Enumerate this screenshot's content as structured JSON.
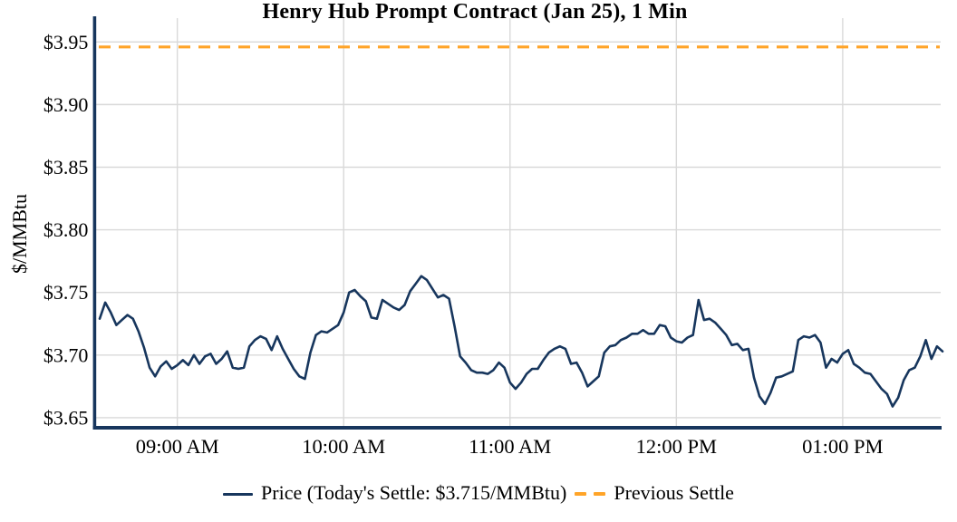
{
  "legend": {
    "price_label": "Price (Today's Settle: $3.715/MMBtu)",
    "settle_label": "Previous Settle"
  },
  "colors": {
    "price_line": "#17365d",
    "previous_settle": "#ffa428",
    "axis": "#17365d",
    "grid": "#d9d9d9",
    "text": "#000000",
    "background": "#ffffff"
  },
  "chart_data": {
    "type": "line",
    "title": "Henry Hub Prompt Contract (Jan 25), 1 Min",
    "xlabel": "",
    "ylabel": "$/MMBtu",
    "ylim": [
      3.642,
      3.969
    ],
    "grid": true,
    "legend_position": "bottom-center",
    "today_settle": 3.715,
    "previous_settle": 3.946,
    "x_start_minute": 512,
    "x_end_minute": 816,
    "step_minutes": 2,
    "time_span": {
      "start": "08:32 AM",
      "end": "01:36 PM"
    },
    "y_ticks": [
      {
        "value": 3.65,
        "label": "$3.65"
      },
      {
        "value": 3.7,
        "label": "$3.70"
      },
      {
        "value": 3.75,
        "label": "$3.75"
      },
      {
        "value": 3.8,
        "label": "$3.80"
      },
      {
        "value": 3.85,
        "label": "$3.85"
      },
      {
        "value": 3.9,
        "label": "$3.90"
      },
      {
        "value": 3.95,
        "label": "$3.95"
      }
    ],
    "x_ticks": [
      {
        "minute": 540,
        "label": "09:00 AM"
      },
      {
        "minute": 600,
        "label": "10:00 AM"
      },
      {
        "minute": 660,
        "label": "11:00 AM"
      },
      {
        "minute": 720,
        "label": "12:00 PM"
      },
      {
        "minute": 780,
        "label": "01:00 PM"
      }
    ],
    "series": [
      {
        "name": "Price",
        "values": [
          3.729,
          3.742,
          3.734,
          3.724,
          3.728,
          3.732,
          3.729,
          3.719,
          3.706,
          3.69,
          3.683,
          3.691,
          3.695,
          3.689,
          3.692,
          3.696,
          3.692,
          3.7,
          3.693,
          3.699,
          3.701,
          3.693,
          3.697,
          3.703,
          3.69,
          3.689,
          3.69,
          3.707,
          3.712,
          3.715,
          3.713,
          3.704,
          3.715,
          3.705,
          3.697,
          3.689,
          3.683,
          3.681,
          3.702,
          3.716,
          3.719,
          3.718,
          3.721,
          3.724,
          3.734,
          3.75,
          3.752,
          3.747,
          3.743,
          3.73,
          3.729,
          3.744,
          3.741,
          3.738,
          3.736,
          3.74,
          3.751,
          3.757,
          3.763,
          3.76,
          3.753,
          3.746,
          3.748,
          3.745,
          3.723,
          3.699,
          3.694,
          3.688,
          3.686,
          3.686,
          3.685,
          3.688,
          3.694,
          3.69,
          3.678,
          3.673,
          3.678,
          3.685,
          3.689,
          3.689,
          3.696,
          3.702,
          3.705,
          3.707,
          3.705,
          3.693,
          3.694,
          3.686,
          3.675,
          3.679,
          3.683,
          3.702,
          3.707,
          3.708,
          3.712,
          3.714,
          3.717,
          3.717,
          3.72,
          3.717,
          3.717,
          3.724,
          3.723,
          3.714,
          3.711,
          3.71,
          3.714,
          3.716,
          3.744,
          3.728,
          3.729,
          3.726,
          3.721,
          3.716,
          3.708,
          3.709,
          3.704,
          3.705,
          3.682,
          3.667,
          3.661,
          3.67,
          3.682,
          3.683,
          3.685,
          3.687,
          3.712,
          3.715,
          3.714,
          3.716,
          3.71,
          3.69,
          3.697,
          3.694,
          3.701,
          3.704,
          3.693,
          3.69,
          3.686,
          3.685,
          3.679,
          3.673,
          3.669,
          3.659,
          3.666,
          3.68,
          3.688,
          3.69,
          3.699,
          3.712,
          3.697,
          3.707,
          3.703
        ]
      },
      {
        "name": "Previous Settle",
        "constant_value": 3.946,
        "style": "dashed"
      }
    ]
  }
}
